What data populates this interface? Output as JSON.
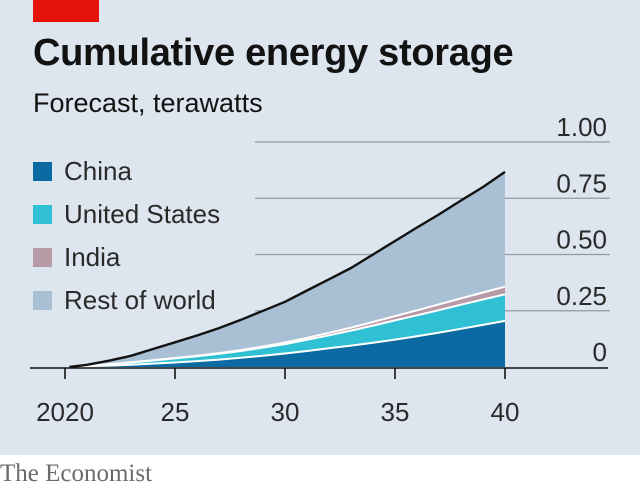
{
  "header": {
    "title": "Cumulative energy storage",
    "subtitle": "Forecast, terawatts"
  },
  "source": "The Economist",
  "colors": {
    "background": "#dde5ee",
    "accent": "#e3120b",
    "china": "#0a6aa1",
    "united_states": "#2fc1d3",
    "india": "#b79aa5",
    "rest_of_world": "#a9bfd3",
    "total_line": "#121212"
  },
  "chart_data": {
    "type": "area",
    "stacked": true,
    "title": "Cumulative energy storage",
    "subtitle": "Forecast, terawatts",
    "x": [
      2021,
      2022,
      2023,
      2024,
      2025,
      2026,
      2027,
      2028,
      2029,
      2030,
      2031,
      2032,
      2033,
      2034,
      2035,
      2036,
      2037,
      2038,
      2039,
      2040
    ],
    "x_ticks": [
      2020,
      2025,
      2030,
      2035,
      2040
    ],
    "x_tick_labels": [
      "2020",
      "25",
      "30",
      "35",
      "40"
    ],
    "ylim": [
      0,
      1.0
    ],
    "y_ticks": [
      0,
      0.25,
      0.5,
      0.75,
      1.0
    ],
    "y_tick_labels": [
      "0",
      "0.25",
      "0.50",
      "0.75",
      "1.00"
    ],
    "y_axis_side": "right",
    "grid": true,
    "legend": "top-left",
    "series": [
      {
        "name": "China",
        "color_key": "china",
        "values": [
          0.003,
          0.006,
          0.01,
          0.015,
          0.02,
          0.026,
          0.033,
          0.041,
          0.05,
          0.06,
          0.071,
          0.083,
          0.095,
          0.108,
          0.122,
          0.137,
          0.153,
          0.17,
          0.187,
          0.205
        ]
      },
      {
        "name": "United States",
        "color_key": "united_states",
        "values": [
          0.002,
          0.006,
          0.01,
          0.014,
          0.018,
          0.022,
          0.026,
          0.03,
          0.036,
          0.042,
          0.05,
          0.058,
          0.067,
          0.076,
          0.085,
          0.093,
          0.1,
          0.107,
          0.113,
          0.118
        ]
      },
      {
        "name": "India",
        "color_key": "india",
        "values": [
          0.0,
          0.0,
          0.001,
          0.001,
          0.002,
          0.002,
          0.003,
          0.004,
          0.005,
          0.007,
          0.009,
          0.011,
          0.013,
          0.016,
          0.019,
          0.022,
          0.025,
          0.028,
          0.031,
          0.034
        ]
      },
      {
        "name": "Rest of world",
        "color_key": "rest_of_world",
        "values": [
          0.005,
          0.016,
          0.029,
          0.05,
          0.07,
          0.09,
          0.111,
          0.135,
          0.159,
          0.181,
          0.21,
          0.238,
          0.265,
          0.3,
          0.334,
          0.368,
          0.4,
          0.435,
          0.469,
          0.51
        ]
      }
    ]
  }
}
